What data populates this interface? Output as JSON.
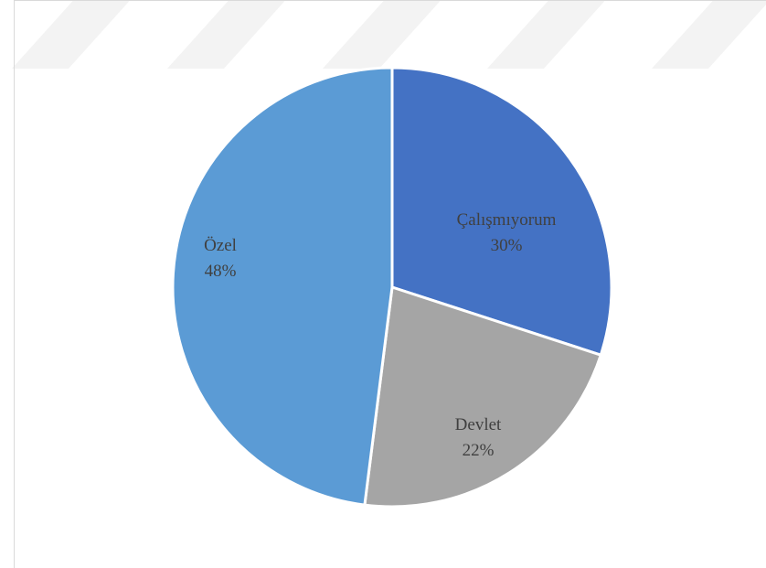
{
  "chart_data": {
    "type": "pie",
    "title": "",
    "start_angle_deg": 0,
    "direction": "clockwise",
    "slices": [
      {
        "name": "Çalışmıyorum",
        "value": 30,
        "label": "30%",
        "color": "#4472c4"
      },
      {
        "name": "Devlet",
        "value": 22,
        "label": "22%",
        "color": "#a5a5a5"
      },
      {
        "name": "Özel",
        "value": 48,
        "label": "48%",
        "color": "#5b9bd5"
      }
    ],
    "legend": false,
    "border_color": "#ffffff"
  }
}
